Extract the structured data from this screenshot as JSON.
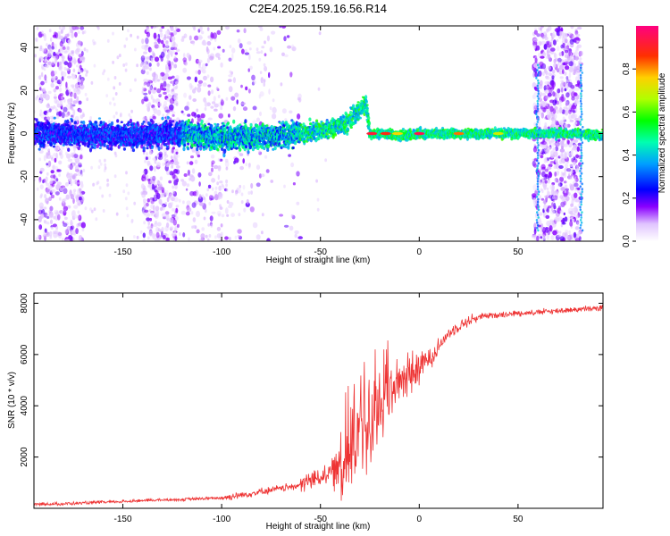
{
  "figure": {
    "title": "C2E4.2025.159.16.56.R14"
  },
  "chart_data": [
    {
      "type": "heatmap",
      "title": "C2E4.2025.159.16.56.R14",
      "xlabel": "Height of straight line (km)",
      "ylabel": "Frequency (Hz)",
      "xlim": [
        -195,
        93
      ],
      "ylim": [
        -50,
        50
      ],
      "x_ticks": [
        -150,
        -100,
        -50,
        0,
        50
      ],
      "y_ticks": [
        -40,
        -20,
        0,
        20,
        40
      ],
      "colorbar": {
        "label": "Normalized spectral amplitude",
        "range": [
          0,
          1
        ],
        "ticks": [
          "0.0",
          "0.2",
          "0.4",
          "0.6",
          "0.8"
        ],
        "colors": [
          "#ffffff",
          "#d7b8f5",
          "#7a00ff",
          "#0000ff",
          "#00c0ff",
          "#00ff80",
          "#80ff00",
          "#ffff00",
          "#ff8000",
          "#ff0000",
          "#ff0080"
        ]
      },
      "ridge": {
        "description_points": [
          {
            "x": -190,
            "y": 0
          },
          {
            "x": -150,
            "y": -1
          },
          {
            "x": -120,
            "y": 0
          },
          {
            "x": -100,
            "y": -2
          },
          {
            "x": -75,
            "y": -1
          },
          {
            "x": -60,
            "y": 0
          },
          {
            "x": -45,
            "y": 2
          },
          {
            "x": -35,
            "y": 6
          },
          {
            "x": -27,
            "y": 14
          },
          {
            "x": -25,
            "y": 0
          },
          {
            "x": -20,
            "y": 0
          },
          {
            "x": -10,
            "y": -1
          },
          {
            "x": 0,
            "y": 0
          },
          {
            "x": 20,
            "y": 0
          },
          {
            "x": 55,
            "y": 0
          },
          {
            "x": 60,
            "y": 0
          },
          {
            "x": 80,
            "y": 0
          },
          {
            "x": 93,
            "y": -1
          }
        ]
      },
      "grid": false
    },
    {
      "type": "line",
      "xlabel": "Height of straight line (km)",
      "ylabel": "SNR (10 * v/v)",
      "xlim": [
        -195,
        93
      ],
      "ylim": [
        0,
        8400
      ],
      "x_ticks": [
        -150,
        -100,
        -50,
        0,
        50
      ],
      "y_ticks": [
        2000,
        4000,
        6000,
        8000
      ],
      "color": "#ee3333",
      "series": [
        {
          "x": [
            -195,
            -180,
            -160,
            -150,
            -140,
            -120,
            -100,
            -90,
            -80,
            -70,
            -60,
            -50,
            -45,
            -40,
            -35,
            -30,
            -25,
            -20,
            -15,
            -10,
            -5,
            0,
            5,
            10,
            15,
            20,
            25,
            30,
            40,
            50,
            60,
            70,
            80,
            93
          ],
          "values": [
            150,
            170,
            230,
            260,
            300,
            340,
            400,
            500,
            640,
            760,
            900,
            1200,
            1400,
            1700,
            2200,
            2800,
            3500,
            4200,
            4700,
            5000,
            5300,
            5500,
            5800,
            6300,
            6800,
            7100,
            7300,
            7450,
            7550,
            7600,
            7650,
            7700,
            7750,
            7800
          ]
        }
      ],
      "grid": false
    }
  ]
}
